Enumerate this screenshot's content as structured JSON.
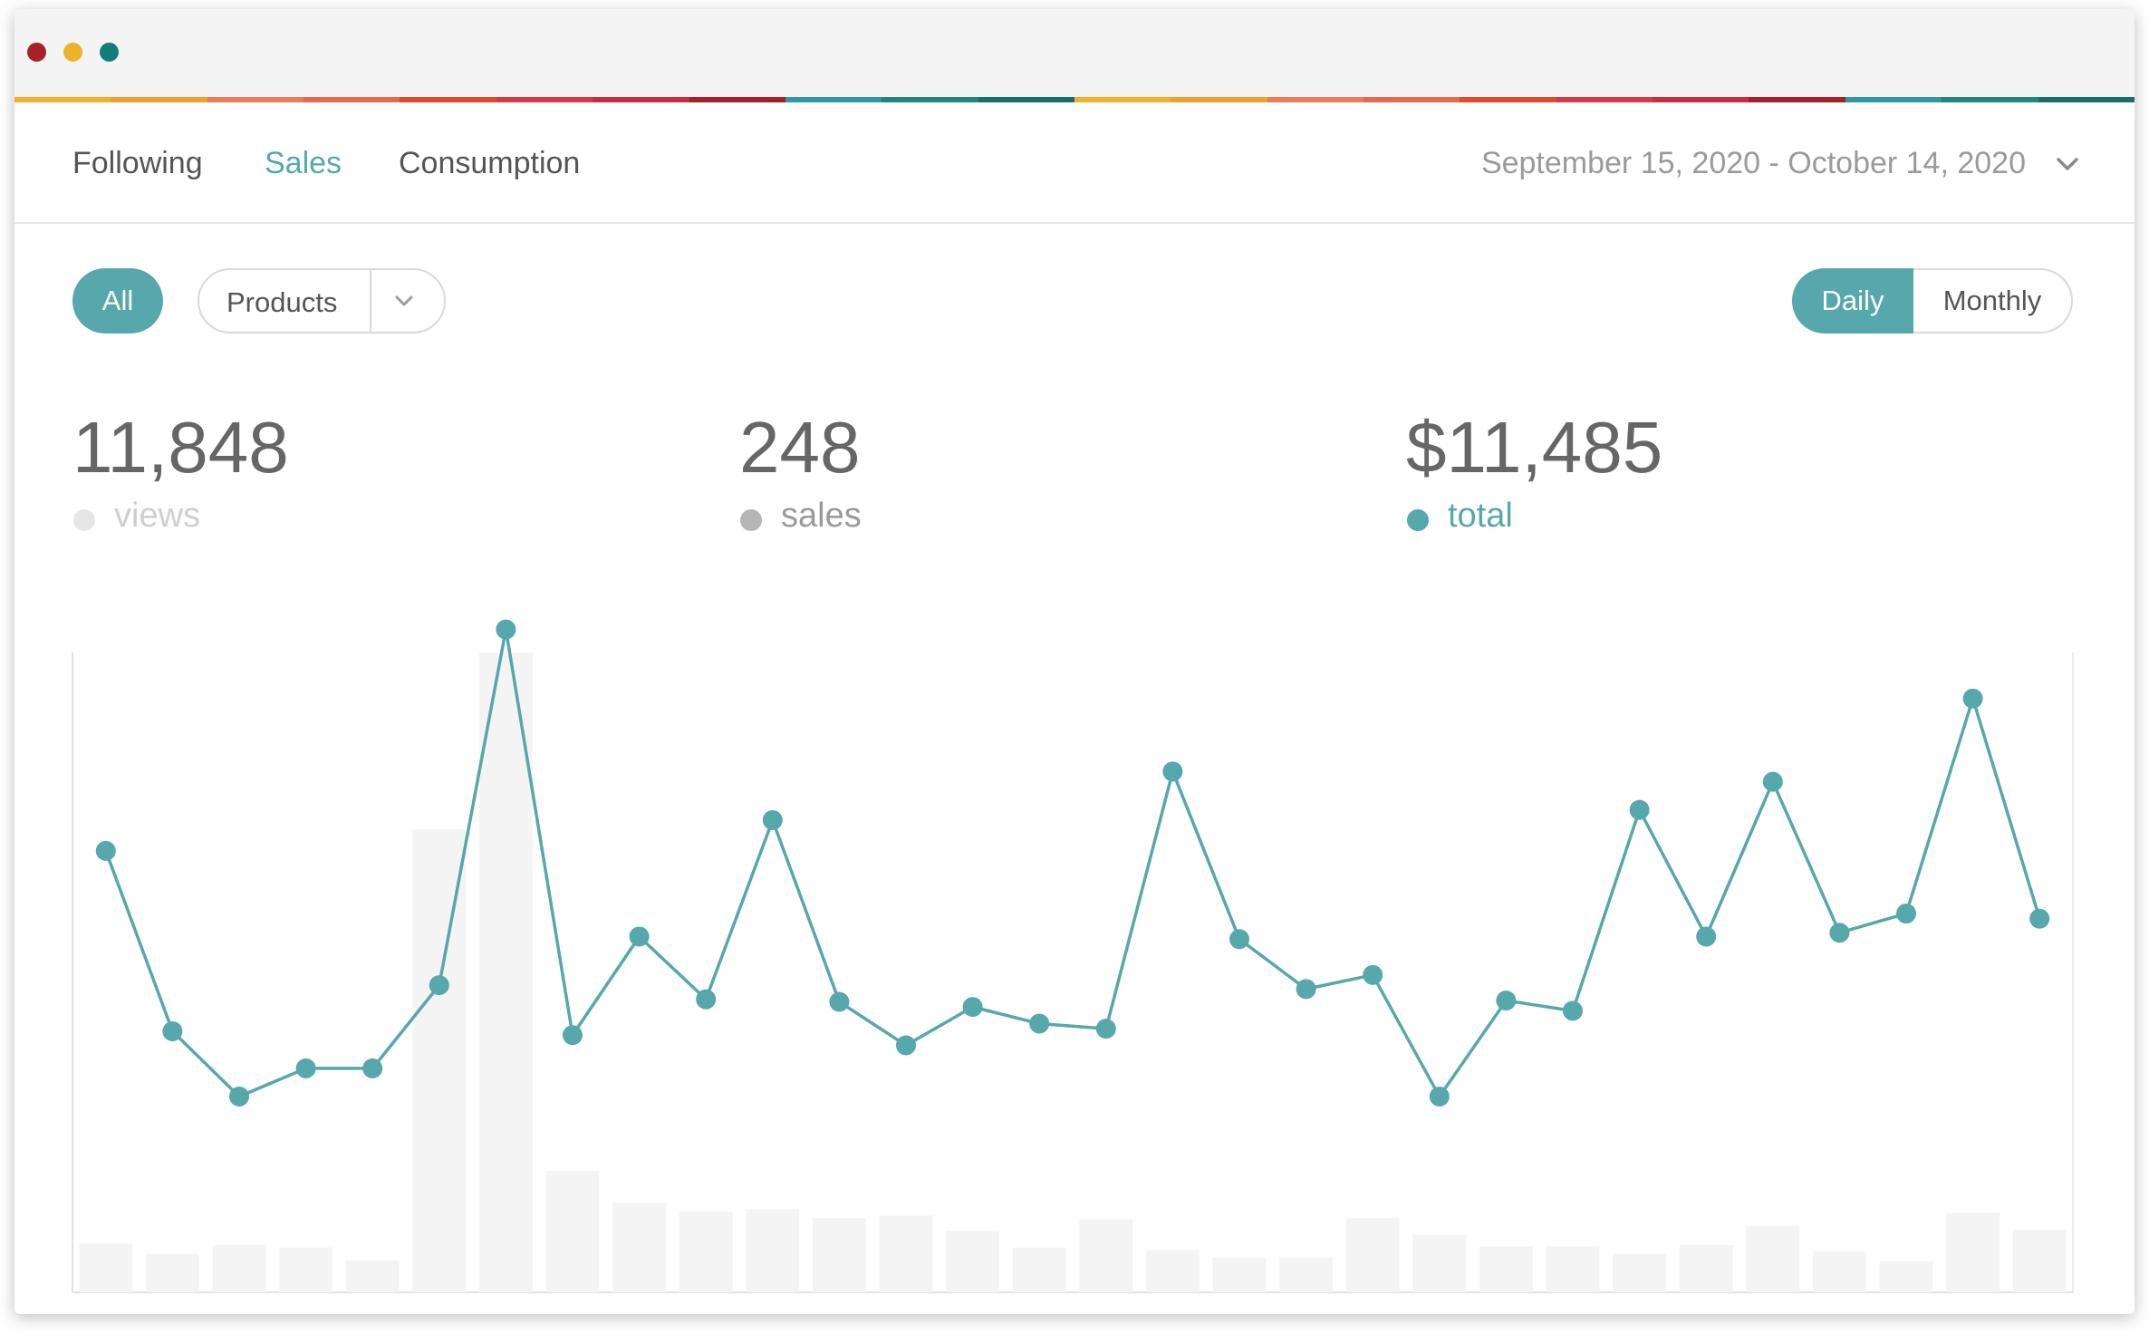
{
  "colors": {
    "accent": "#56a8ac",
    "bar": "#f4f4f4",
    "traffic_red": "#a8202a",
    "traffic_yellow": "#f0b12a",
    "traffic_green": "#137d79",
    "stripe": [
      "#f0b12a",
      "#ef9f2c",
      "#ea7d56",
      "#e06a4a",
      "#db4b2b",
      "#d73747",
      "#c92a41",
      "#a31f2a",
      "#2d97a3",
      "#1d8482",
      "#176f6b",
      "#f0b12a",
      "#ef9f2c",
      "#ea7d56",
      "#e06a4a",
      "#db4b2b",
      "#d73747",
      "#c92a41",
      "#a31f2a",
      "#2d97a3",
      "#1d8482",
      "#176f6b"
    ]
  },
  "window": {
    "traffic_lights": [
      "close-icon",
      "minimize-icon",
      "maximize-icon"
    ]
  },
  "tabs": [
    {
      "label": "Following",
      "active": false
    },
    {
      "label": "Sales",
      "active": true
    },
    {
      "label": "Consumption",
      "active": false
    }
  ],
  "date_range": {
    "label": "September 15, 2020 - October 14, 2020",
    "icon": "chevron-down-icon"
  },
  "filters": {
    "all_label": "All",
    "products_label": "Products",
    "products_icon": "chevron-down-icon"
  },
  "period": {
    "daily_label": "Daily",
    "monthly_label": "Monthly",
    "selected": "Daily"
  },
  "stats": {
    "views": {
      "value": "11,848",
      "label": "views",
      "dot_color": "#e6e6e6",
      "label_color": "#cfcfcf"
    },
    "sales": {
      "value": "248",
      "label": "sales",
      "dot_color": "#b5b5b5",
      "label_color": "#9a9a9a"
    },
    "total": {
      "value": "$11,485",
      "label": "total",
      "dot_color": "#56a8ac",
      "label_color": "#56a8ac"
    }
  },
  "chart_data": {
    "type": "line",
    "series": [
      {
        "values": [
          345,
          204,
          153,
          175,
          175,
          240,
          518,
          201,
          278,
          229,
          369,
          227,
          193,
          223,
          210,
          206,
          407,
          276,
          237,
          248,
          153,
          228,
          220,
          377,
          278,
          399,
          281,
          296,
          464,
          292
        ]
      },
      {
        "values": [
          38,
          30,
          37,
          35,
          25,
          362,
          500,
          95,
          70,
          63,
          65,
          58,
          60,
          48,
          35,
          57,
          33,
          27,
          27,
          58,
          45,
          36,
          36,
          30,
          37,
          52,
          32,
          24,
          62,
          49
        ]
      }
    ],
    "ylim": [
      0,
      500
    ],
    "grid": false
  }
}
